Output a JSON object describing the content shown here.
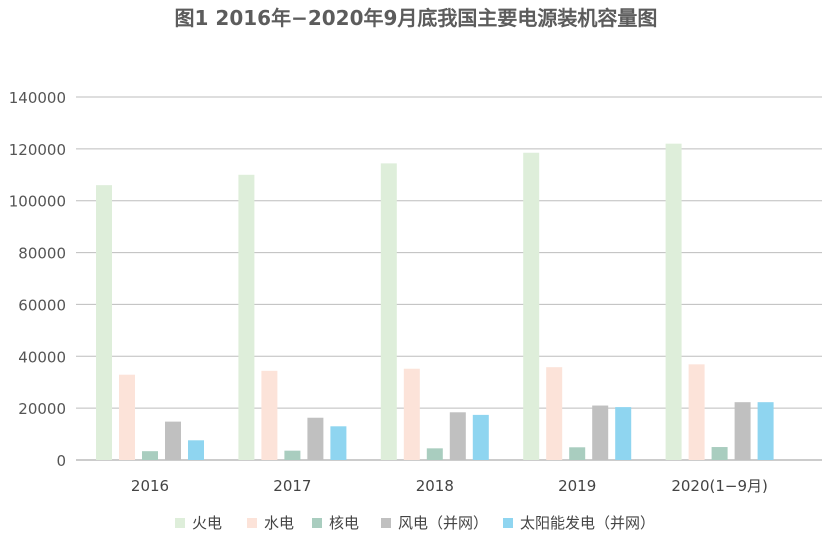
{
  "chart_data": {
    "type": "bar",
    "title": "图1 2016年−2020年9月底我国主要电源装机容量图",
    "categories": [
      "2016",
      "2017",
      "2018",
      "2019",
      "2020(1−9月)"
    ],
    "series": [
      {
        "name": "火电",
        "color": "#deeeda",
        "values": [
          106000,
          110000,
          114400,
          118500,
          122000
        ]
      },
      {
        "name": "水电",
        "color": "#fce3d9",
        "values": [
          32900,
          34400,
          35200,
          35800,
          36900
        ]
      },
      {
        "name": "核电",
        "color": "#a9cdbf",
        "values": [
          3400,
          3600,
          4500,
          4900,
          5000
        ]
      },
      {
        "name": "风电（并网）",
        "color": "#c0c0c0",
        "values": [
          14800,
          16300,
          18400,
          21000,
          22300
        ]
      },
      {
        "name": "太阳能发电（并网）",
        "color": "#8fd5f0",
        "values": [
          7600,
          13000,
          17400,
          20400,
          22300
        ]
      }
    ],
    "ylim": [
      0,
      140000
    ],
    "yticks": [
      "0",
      "20000",
      "40000",
      "60000",
      "80000",
      "100000",
      "120000",
      "140000"
    ],
    "ytick_values": [
      0,
      20000,
      40000,
      60000,
      80000,
      100000,
      120000,
      140000
    ],
    "grid": true,
    "legend_position": "bottom",
    "xlabel": "",
    "ylabel": ""
  }
}
